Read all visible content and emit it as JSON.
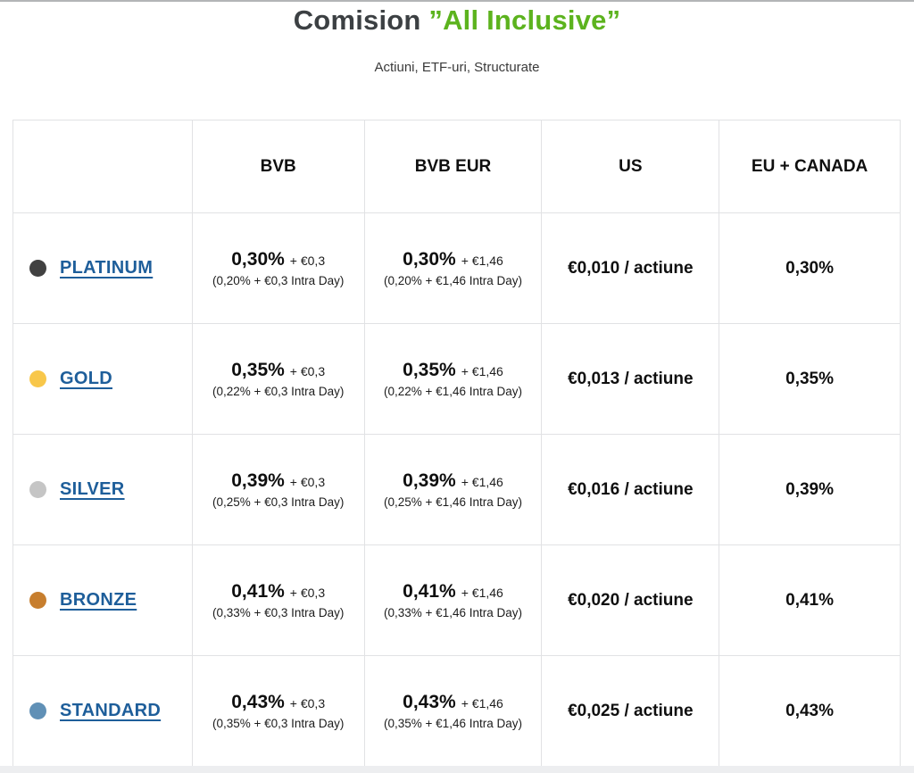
{
  "page": {
    "title_main": "Comision",
    "title_accent": "”All Inclusive”",
    "subtitle": "Actiuni, ETF-uri, Structurate",
    "accent_color": "#5cb31e",
    "link_color": "#1e5e9a"
  },
  "table": {
    "columns": [
      "",
      "BVB",
      "BVB EUR",
      "US",
      "EU + CANADA"
    ],
    "rows": [
      {
        "label": "PLATINUM",
        "dot_color": "#414141",
        "bvb": {
          "rate": "0,30%",
          "fee": "+ €0,3",
          "intra": "(0,20% + €0,3 Intra Day)"
        },
        "bvb_eur": {
          "rate": "0,30%",
          "fee": "+ €1,46",
          "intra": "(0,20% + €1,46 Intra Day)"
        },
        "us": "€0,010 / actiune",
        "eu_canada": "0,30%"
      },
      {
        "label": "GOLD",
        "dot_color": "#f8c74a",
        "bvb": {
          "rate": "0,35%",
          "fee": "+ €0,3",
          "intra": "(0,22% + €0,3 Intra Day)"
        },
        "bvb_eur": {
          "rate": "0,35%",
          "fee": "+ €1,46",
          "intra": "(0,22% + €1,46 Intra Day)"
        },
        "us": "€0,013 / actiune",
        "eu_canada": "0,35%"
      },
      {
        "label": "SILVER",
        "dot_color": "#c5c5c5",
        "bvb": {
          "rate": "0,39%",
          "fee": "+ €0,3",
          "intra": "(0,25% + €0,3 Intra Day)"
        },
        "bvb_eur": {
          "rate": "0,39%",
          "fee": "+ €1,46",
          "intra": "(0,25% + €1,46 Intra Day)"
        },
        "us": "€0,016 / actiune",
        "eu_canada": "0,39%"
      },
      {
        "label": "BRONZE",
        "dot_color": "#c77e2e",
        "bvb": {
          "rate": "0,41%",
          "fee": "+ €0,3",
          "intra": "(0,33% + €0,3 Intra Day)"
        },
        "bvb_eur": {
          "rate": "0,41%",
          "fee": "+ €1,46",
          "intra": "(0,33% + €1,46 Intra Day)"
        },
        "us": "€0,020 / actiune",
        "eu_canada": "0,41%"
      },
      {
        "label": "STANDARD",
        "dot_color": "#6090b6",
        "bvb": {
          "rate": "0,43%",
          "fee": "+ €0,3",
          "intra": "(0,35% + €0,3 Intra Day)"
        },
        "bvb_eur": {
          "rate": "0,43%",
          "fee": "+ €1,46",
          "intra": "(0,35% + €1,46 Intra Day)"
        },
        "us": "€0,025 / actiune",
        "eu_canada": "0,43%"
      }
    ]
  }
}
